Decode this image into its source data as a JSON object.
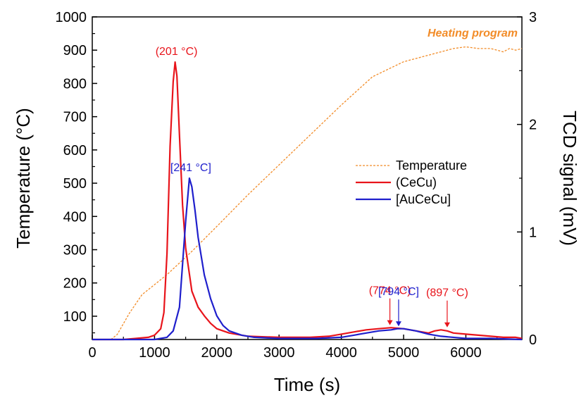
{
  "chart_data": {
    "type": "line",
    "xlabel": "Time (s)",
    "ylabel_left": "Temperature (°C)",
    "ylabel_right": "TCD signal (mV)",
    "xlim": [
      0,
      6900
    ],
    "ylim_left": [
      30,
      1000
    ],
    "ylim_right": [
      0,
      3
    ],
    "xticks": [
      0,
      1000,
      2000,
      3000,
      4000,
      5000,
      6000
    ],
    "yticks_left": [
      100,
      200,
      300,
      400,
      500,
      600,
      700,
      800,
      900,
      1000
    ],
    "yticks_right": [
      0,
      1,
      2,
      3
    ],
    "grid": false,
    "legend_position": "center-right",
    "heating_program_label": "Heating program",
    "series": [
      {
        "name": "Temperature",
        "axis": "left",
        "style": "dashed",
        "color": "#F28C28",
        "x": [
          300,
          400,
          600,
          800,
          1000,
          1200,
          1400,
          1600,
          2000,
          2500,
          3000,
          3500,
          4000,
          4500,
          5000,
          5400,
          5600,
          5800,
          6000,
          6200,
          6400,
          6500,
          6600,
          6700,
          6800,
          6900
        ],
        "y": [
          30,
          45,
          110,
          165,
          195,
          225,
          260,
          295,
          370,
          465,
          555,
          645,
          735,
          820,
          865,
          885,
          895,
          905,
          910,
          905,
          905,
          900,
          895,
          905,
          900,
          905
        ]
      },
      {
        "name": "(CeCu)",
        "axis": "right",
        "color": "#E8141B",
        "x": [
          0,
          500,
          700,
          900,
          1000,
          1100,
          1150,
          1200,
          1250,
          1300,
          1330,
          1360,
          1400,
          1450,
          1500,
          1600,
          1700,
          1800,
          1900,
          2000,
          2200,
          2500,
          3000,
          3500,
          3800,
          4000,
          4200,
          4400,
          4600,
          4800,
          5000,
          5200,
          5400,
          5500,
          5600,
          5700,
          5800,
          6000,
          6200,
          6400,
          6600,
          6800,
          6900
        ],
        "y": [
          0.0,
          0.0,
          0.01,
          0.02,
          0.04,
          0.1,
          0.25,
          0.8,
          1.8,
          2.4,
          2.58,
          2.45,
          1.9,
          1.25,
          0.85,
          0.45,
          0.3,
          0.22,
          0.15,
          0.1,
          0.06,
          0.03,
          0.02,
          0.02,
          0.03,
          0.05,
          0.07,
          0.09,
          0.1,
          0.11,
          0.1,
          0.08,
          0.06,
          0.08,
          0.09,
          0.08,
          0.06,
          0.05,
          0.04,
          0.03,
          0.02,
          0.02,
          0.01
        ]
      },
      {
        "name": "[AuCeCu]",
        "axis": "right",
        "color": "#1F1FCC",
        "x": [
          0,
          1000,
          1200,
          1300,
          1400,
          1450,
          1500,
          1560,
          1600,
          1650,
          1700,
          1800,
          1900,
          2000,
          2100,
          2200,
          2400,
          2600,
          3000,
          3600,
          4000,
          4200,
          4400,
          4600,
          4800,
          4900,
          5000,
          5200,
          5400,
          5600,
          6000,
          6400,
          6900
        ],
        "y": [
          0.0,
          0.0,
          0.02,
          0.08,
          0.3,
          0.7,
          1.1,
          1.5,
          1.42,
          1.2,
          0.95,
          0.6,
          0.38,
          0.22,
          0.13,
          0.08,
          0.04,
          0.02,
          0.01,
          0.01,
          0.02,
          0.04,
          0.06,
          0.08,
          0.09,
          0.1,
          0.1,
          0.08,
          0.05,
          0.03,
          0.01,
          0.01,
          0.0
        ]
      }
    ],
    "annotations": [
      {
        "text": "(201 °C)",
        "color": "#E8141B",
        "x": 1330,
        "y_right": 2.58,
        "arrow": false
      },
      {
        "text": "[241 °C]",
        "color": "#1F1FCC",
        "x": 1560,
        "y_right": 1.5,
        "arrow": false
      },
      {
        "text": "(774 °C)",
        "color": "#E8141B",
        "x": 4780,
        "y_right": 0.12,
        "arrow": true
      },
      {
        "text": "[794 °C]",
        "color": "#1F1FCC",
        "x": 4920,
        "y_right": 0.11,
        "arrow": true
      },
      {
        "text": "(897 °C)",
        "color": "#E8141B",
        "x": 5700,
        "y_right": 0.1,
        "arrow": true
      }
    ]
  }
}
